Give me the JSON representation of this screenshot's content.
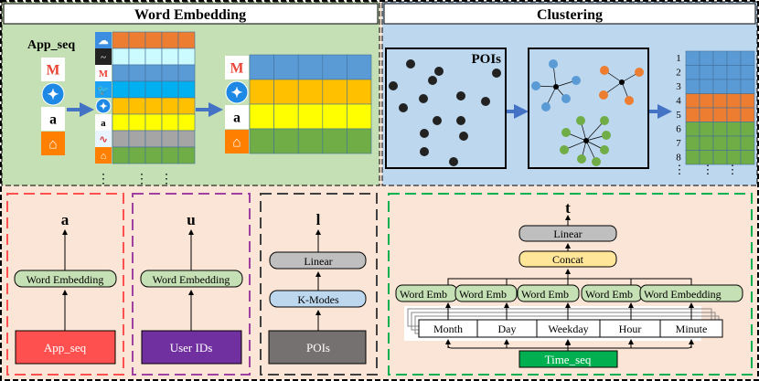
{
  "word_embedding_panel": {
    "title": "Word Embedding",
    "app_seq_label": "App_seq",
    "input_icons": [
      "gmail-icon",
      "safari-icon",
      "amazon-icon",
      "lieferando-icon"
    ],
    "vocab_icons": [
      "weather-icon",
      "stocks-icon",
      "gmail-icon",
      "twitter-icon",
      "safari-icon",
      "amazon-icon",
      "maps-icon",
      "lieferando-icon"
    ],
    "vocab_row_colors": [
      "#ed7d31",
      "#ccfbff",
      "#5b9bd5",
      "#00b0f0",
      "#ffc000",
      "#ffff00",
      "#a5a5a5",
      "#70ad47"
    ],
    "output_row_colors": [
      "#5b9bd5",
      "#ffc000",
      "#ffff00",
      "#70ad47"
    ],
    "ellipsis": "⋮"
  },
  "clustering_panel": {
    "title": "Clustering",
    "pois_label": "POIs",
    "row_numbers": [
      "1",
      "2",
      "3",
      "4",
      "5",
      "6",
      "7",
      "8"
    ],
    "row_colors": [
      "#5b9bd5",
      "#5b9bd5",
      "#5b9bd5",
      "#ed7d31",
      "#ed7d31",
      "#70ad47",
      "#70ad47",
      "#70ad47"
    ],
    "cluster_colors": [
      "#5b9bd5",
      "#ed7d31",
      "#70ad47"
    ],
    "ellipsis": "⋮"
  },
  "app_branch": {
    "output": "a",
    "embedding": "Word Embedding",
    "input": "App_seq",
    "input_color": "#ff5050",
    "border_color": "#ff5050"
  },
  "user_branch": {
    "output": "u",
    "embedding": "Word Embedding",
    "input": "User IDs",
    "input_color": "#7030a0",
    "border_color": "#a040a0"
  },
  "poi_branch": {
    "output": "l",
    "linear": "Linear",
    "kmodes": "K-Modes",
    "input": "POIs",
    "input_color": "#767171",
    "border_color": "#404040"
  },
  "time_branch": {
    "output": "t",
    "linear": "Linear",
    "concat": "Concat",
    "embeddings": [
      "Word Emb",
      "Word Emb",
      "Word Emb",
      "Word Emb",
      "Word Embedding"
    ],
    "fields": [
      "Month",
      "Day",
      "Weekday",
      "Hour",
      "Minute"
    ],
    "input": "Time_seq",
    "input_color": "#00b050",
    "border_color": "#00b050"
  }
}
